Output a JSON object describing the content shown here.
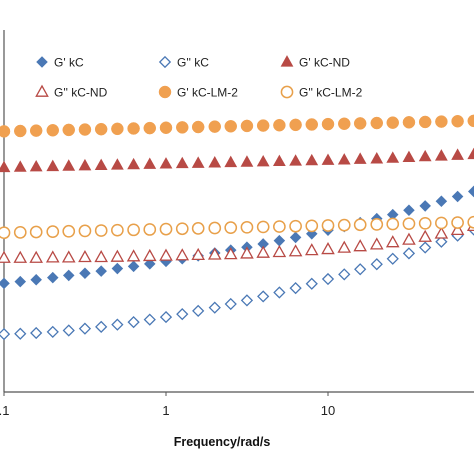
{
  "chart_data": {
    "type": "scatter",
    "xlabel": "Frequency/rad/s",
    "ylabel": "",
    "xscale": "log",
    "xlim": [
      0.1,
      100
    ],
    "x_ticks": [
      ".1",
      "1",
      "10"
    ],
    "grid": false,
    "legend_position": "top",
    "series": [
      {
        "name": "G' kC",
        "marker": "diamond",
        "fill": "filled",
        "color": "#4a78b5",
        "x": [
          0.1,
          0.126,
          0.158,
          0.2,
          0.251,
          0.316,
          0.398,
          0.501,
          0.631,
          0.794,
          1.0,
          1.26,
          1.58,
          2.0,
          2.51,
          3.16,
          3.98,
          5.01,
          6.31,
          7.94,
          10.0,
          12.6,
          15.8,
          20.0,
          25.1,
          31.6,
          39.8,
          50.1,
          63.1,
          79.4
        ],
        "y": [
          0.3,
          0.305,
          0.31,
          0.316,
          0.322,
          0.328,
          0.334,
          0.341,
          0.347,
          0.354,
          0.361,
          0.368,
          0.376,
          0.384,
          0.392,
          0.4,
          0.409,
          0.418,
          0.427,
          0.437,
          0.447,
          0.457,
          0.468,
          0.479,
          0.49,
          0.502,
          0.514,
          0.527,
          0.54,
          0.554
        ]
      },
      {
        "name": "G'' kC",
        "marker": "diamond",
        "fill": "hollow",
        "color": "#4a78b5",
        "x": [
          0.1,
          0.126,
          0.158,
          0.2,
          0.251,
          0.316,
          0.398,
          0.501,
          0.631,
          0.794,
          1.0,
          1.26,
          1.58,
          2.0,
          2.51,
          3.16,
          3.98,
          5.01,
          6.31,
          7.94,
          10.0,
          12.6,
          15.8,
          20.0,
          25.1,
          31.6,
          39.8,
          50.1,
          63.1,
          79.4,
          100
        ],
        "y": [
          0.16,
          0.161,
          0.163,
          0.166,
          0.17,
          0.175,
          0.18,
          0.186,
          0.193,
          0.2,
          0.207,
          0.215,
          0.224,
          0.233,
          0.243,
          0.253,
          0.264,
          0.275,
          0.287,
          0.299,
          0.312,
          0.325,
          0.339,
          0.353,
          0.368,
          0.383,
          0.399,
          0.415,
          0.432,
          0.449,
          0.466
        ]
      },
      {
        "name": "G' kC-ND",
        "marker": "triangle",
        "fill": "filled",
        "color": "#b84a45",
        "x": [
          0.1,
          0.126,
          0.158,
          0.2,
          0.251,
          0.316,
          0.398,
          0.501,
          0.631,
          0.794,
          1.0,
          1.26,
          1.58,
          2.0,
          2.51,
          3.16,
          3.98,
          5.01,
          6.31,
          7.94,
          10.0,
          12.6,
          15.8,
          20.0,
          25.1,
          31.6,
          39.8,
          50.1,
          63.1,
          79.4,
          100
        ],
        "y": [
          0.62,
          0.621,
          0.622,
          0.623,
          0.624,
          0.625,
          0.626,
          0.627,
          0.628,
          0.629,
          0.63,
          0.631,
          0.632,
          0.633,
          0.634,
          0.635,
          0.636,
          0.637,
          0.638,
          0.639,
          0.64,
          0.641,
          0.643,
          0.644,
          0.646,
          0.648,
          0.65,
          0.652,
          0.654,
          0.656,
          0.658
        ]
      },
      {
        "name": "G'' kC-ND",
        "marker": "triangle",
        "fill": "hollow",
        "color": "#b84a45",
        "x": [
          0.1,
          0.126,
          0.158,
          0.2,
          0.251,
          0.316,
          0.398,
          0.501,
          0.631,
          0.794,
          1.0,
          1.26,
          1.58,
          2.0,
          2.51,
          3.16,
          3.98,
          5.01,
          6.31,
          7.94,
          10.0,
          12.6,
          15.8,
          20.0,
          25.1,
          31.6,
          39.8,
          50.1,
          63.1,
          79.4,
          100
        ],
        "y": [
          0.37,
          0.37,
          0.37,
          0.371,
          0.371,
          0.372,
          0.372,
          0.373,
          0.374,
          0.375,
          0.376,
          0.377,
          0.378,
          0.379,
          0.38,
          0.382,
          0.384,
          0.386,
          0.388,
          0.391,
          0.394,
          0.398,
          0.402,
          0.407,
          0.413,
          0.42,
          0.428,
          0.437,
          0.447,
          0.458,
          0.47
        ]
      },
      {
        "name": "G' kC-LM-2",
        "marker": "circle",
        "fill": "filled",
        "color": "#f0a050",
        "x": [
          0.1,
          0.126,
          0.158,
          0.2,
          0.251,
          0.316,
          0.398,
          0.501,
          0.631,
          0.794,
          1.0,
          1.26,
          1.58,
          2.0,
          2.51,
          3.16,
          3.98,
          5.01,
          6.31,
          7.94,
          10.0,
          12.6,
          15.8,
          20.0,
          25.1,
          31.6,
          39.8,
          50.1,
          63.1,
          79.4,
          100
        ],
        "y": [
          0.72,
          0.721,
          0.722,
          0.723,
          0.724,
          0.725,
          0.726,
          0.727,
          0.728,
          0.729,
          0.73,
          0.731,
          0.732,
          0.733,
          0.734,
          0.735,
          0.736,
          0.737,
          0.738,
          0.739,
          0.74,
          0.741,
          0.742,
          0.743,
          0.744,
          0.745,
          0.746,
          0.747,
          0.748,
          0.749,
          0.75
        ]
      },
      {
        "name": "G'' kC-LM-2",
        "marker": "circle",
        "fill": "hollow",
        "color": "#e8a04a",
        "x": [
          0.1,
          0.126,
          0.158,
          0.2,
          0.251,
          0.316,
          0.398,
          0.501,
          0.631,
          0.794,
          1.0,
          1.26,
          1.58,
          2.0,
          2.51,
          3.16,
          3.98,
          5.01,
          6.31,
          7.94,
          10.0,
          12.6,
          15.8,
          20.0,
          25.1,
          31.6,
          39.8,
          50.1,
          63.1,
          79.4,
          100
        ],
        "y": [
          0.44,
          0.441,
          0.442,
          0.443,
          0.444,
          0.445,
          0.446,
          0.447,
          0.448,
          0.449,
          0.45,
          0.451,
          0.452,
          0.453,
          0.454,
          0.455,
          0.456,
          0.457,
          0.458,
          0.459,
          0.46,
          0.461,
          0.462,
          0.463,
          0.464,
          0.465,
          0.466,
          0.467,
          0.468,
          0.469,
          0.47
        ]
      }
    ]
  }
}
